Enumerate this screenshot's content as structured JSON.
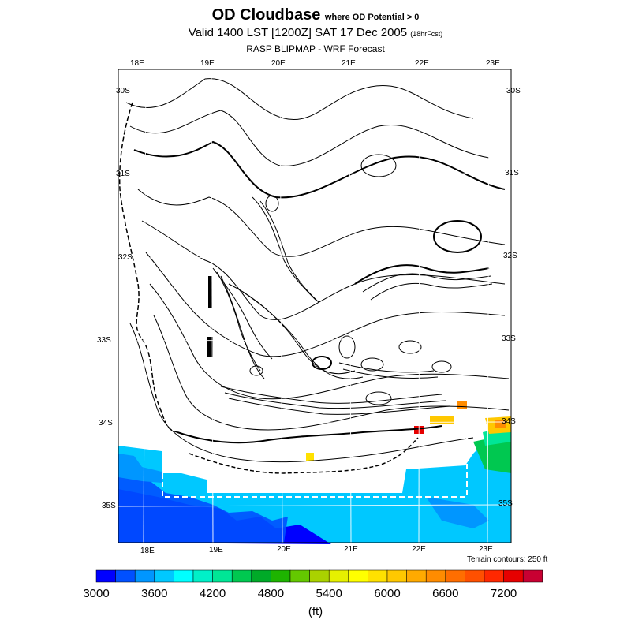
{
  "header": {
    "title": "OD Cloudbase",
    "title_note": "where OD Potential > 0",
    "valid_line": "Valid 1400 LST [1200Z] SAT 17 Dec 2005",
    "forecast_note": "(18hrFcst)",
    "source": "RASP BLIPMAP - WRF Forecast"
  },
  "map": {
    "lon_labels_top": [
      "18E",
      "19E",
      "20E",
      "21E",
      "22E",
      "23E"
    ],
    "lon_labels_bottom": [
      "18E",
      "19E",
      "20E",
      "21E",
      "22E",
      "23E"
    ],
    "lat_labels_left": [
      "30S",
      "31S",
      "32S",
      "33S",
      "34S",
      "35S"
    ],
    "lat_labels_right": [
      "30S",
      "31S",
      "32S",
      "33S",
      "34S",
      "35S"
    ],
    "terrain_note": "Terrain contours: 250 ft"
  },
  "colorbar": {
    "colors": [
      "#0000ff",
      "#0050ff",
      "#0096ff",
      "#00c8ff",
      "#00ffff",
      "#00f0c8",
      "#00e696",
      "#00c850",
      "#00aa28",
      "#1eb400",
      "#64c800",
      "#aad200",
      "#e6f000",
      "#ffff00",
      "#ffe100",
      "#ffc800",
      "#ffaa00",
      "#ff8c00",
      "#ff6e00",
      "#ff5000",
      "#ff2800",
      "#e60000",
      "#c80032"
    ],
    "tick_labels": [
      "3000",
      "3600",
      "4200",
      "4800",
      "5400",
      "6000",
      "6600",
      "7200"
    ],
    "units": "(ft)"
  }
}
